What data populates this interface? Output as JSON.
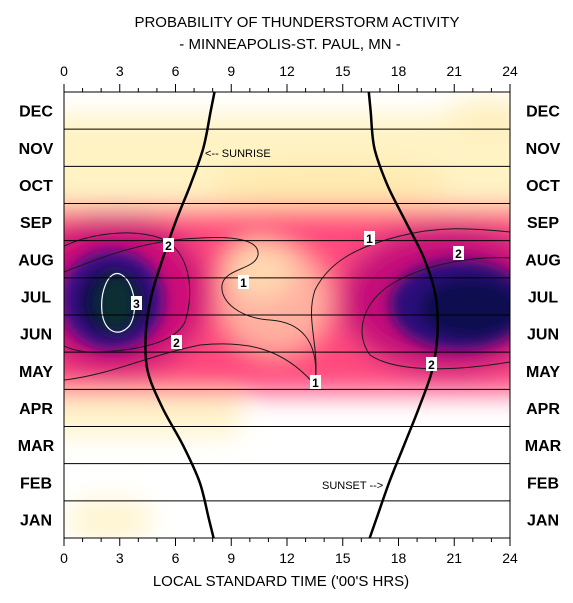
{
  "chart_data": {
    "type": "heatmap",
    "title": "PROBABILITY OF THUNDERSTORM ACTIVITY",
    "subtitle": "- MINNEAPOLIS-ST. PAUL, MN -",
    "xlabel": "LOCAL STANDARD TIME ('00'S HRS)",
    "xlim": [
      0,
      24
    ],
    "x_ticks": [
      "0",
      "3",
      "6",
      "9",
      "12",
      "15",
      "18",
      "21",
      "24"
    ],
    "months": [
      "JAN",
      "FEB",
      "MAR",
      "APR",
      "MAY",
      "JUN",
      "JUL",
      "AUG",
      "SEP",
      "OCT",
      "NOV",
      "DEC"
    ],
    "colors": {
      "low": "#ffffff",
      "cream": "#fff5cc",
      "pink": "#ff3377",
      "magenta": "#cc0077",
      "purple": "#2a0a7a",
      "navy": "#0a0540",
      "core": "#0a2a30"
    },
    "contours": [
      {
        "label": "1",
        "level": 1
      },
      {
        "label": "2",
        "level": 2
      },
      {
        "label": "3",
        "level": 3
      }
    ],
    "annotations": {
      "sunrise": "<-- SUNRISE",
      "sunset": "SUNSET -->"
    },
    "sunrise_curve": [
      {
        "month": 1,
        "hour": 7.8
      },
      {
        "month": 2,
        "hour": 7.3
      },
      {
        "month": 3,
        "hour": 6.4
      },
      {
        "month": 4,
        "hour": 5.3
      },
      {
        "month": 5,
        "hour": 4.5
      },
      {
        "month": 6,
        "hour": 4.4
      },
      {
        "month": 7,
        "hour": 4.7
      },
      {
        "month": 8,
        "hour": 5.3
      },
      {
        "month": 9,
        "hour": 6.0
      },
      {
        "month": 10,
        "hour": 6.8
      },
      {
        "month": 11,
        "hour": 7.5
      },
      {
        "month": 12,
        "hour": 7.9
      }
    ],
    "sunset_curve": [
      {
        "month": 1,
        "hour": 16.8
      },
      {
        "month": 2,
        "hour": 17.5
      },
      {
        "month": 3,
        "hour": 18.3
      },
      {
        "month": 4,
        "hour": 19.1
      },
      {
        "month": 5,
        "hour": 19.8
      },
      {
        "month": 6,
        "hour": 20.1
      },
      {
        "month": 7,
        "hour": 20.0
      },
      {
        "month": 8,
        "hour": 19.4
      },
      {
        "month": 9,
        "hour": 18.4
      },
      {
        "month": 10,
        "hour": 17.4
      },
      {
        "month": 11,
        "hour": 16.7
      },
      {
        "month": 12,
        "hour": 16.5
      }
    ]
  }
}
